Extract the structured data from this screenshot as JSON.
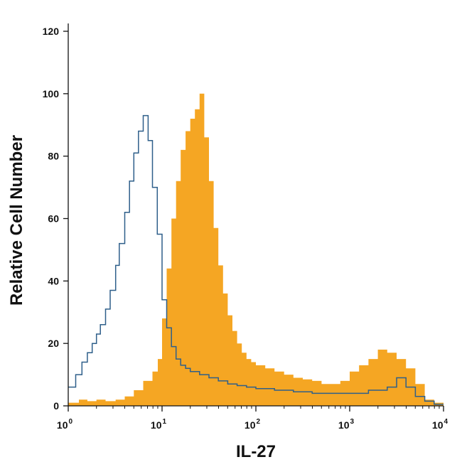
{
  "chart_data": {
    "type": "area",
    "title": "",
    "xlabel": "IL-27",
    "ylabel": "Relative Cell Number",
    "xscale": "log",
    "xlim": [
      1,
      10000
    ],
    "ylim": [
      0,
      120
    ],
    "yticks": [
      0,
      20,
      40,
      60,
      80,
      100,
      120
    ],
    "xticks": [
      {
        "base": "10",
        "exp": "0"
      },
      {
        "base": "10",
        "exp": "1"
      },
      {
        "base": "10",
        "exp": "2"
      },
      {
        "base": "10",
        "exp": "3"
      },
      {
        "base": "10",
        "exp": "4"
      }
    ],
    "grid": false,
    "legend": "none",
    "series": [
      {
        "style": "filled",
        "color": "#f5a623",
        "points": [
          [
            1.0,
            1
          ],
          [
            1.3,
            2
          ],
          [
            1.6,
            1.5
          ],
          [
            2.0,
            2
          ],
          [
            2.5,
            1.5
          ],
          [
            3.2,
            2
          ],
          [
            4.0,
            3
          ],
          [
            5.0,
            5
          ],
          [
            6.3,
            8
          ],
          [
            7.9,
            11
          ],
          [
            9.0,
            15
          ],
          [
            10.0,
            28
          ],
          [
            11.2,
            44
          ],
          [
            12.6,
            60
          ],
          [
            14.1,
            72
          ],
          [
            15.8,
            82
          ],
          [
            17.8,
            88
          ],
          [
            20.0,
            92
          ],
          [
            22.4,
            95
          ],
          [
            25.1,
            100
          ],
          [
            28.2,
            86
          ],
          [
            31.6,
            72
          ],
          [
            35.5,
            57
          ],
          [
            39.8,
            45
          ],
          [
            44.7,
            36
          ],
          [
            50.1,
            29
          ],
          [
            56.2,
            24
          ],
          [
            63.1,
            20
          ],
          [
            70.8,
            17
          ],
          [
            79.4,
            15
          ],
          [
            89.1,
            14
          ],
          [
            100,
            13
          ],
          [
            126,
            12
          ],
          [
            158,
            11
          ],
          [
            200,
            10
          ],
          [
            251,
            9
          ],
          [
            316,
            8.5
          ],
          [
            398,
            8
          ],
          [
            501,
            7
          ],
          [
            631,
            7
          ],
          [
            794,
            8
          ],
          [
            1000,
            11
          ],
          [
            1259,
            13
          ],
          [
            1585,
            15
          ],
          [
            1995,
            18
          ],
          [
            2512,
            17
          ],
          [
            3162,
            15
          ],
          [
            3981,
            12
          ],
          [
            5012,
            7
          ],
          [
            6310,
            2
          ],
          [
            7943,
            1
          ],
          [
            10000,
            1
          ]
        ]
      },
      {
        "style": "outline",
        "color": "#2e5f8a",
        "points": [
          [
            1.0,
            6
          ],
          [
            1.2,
            10
          ],
          [
            1.4,
            14
          ],
          [
            1.6,
            17
          ],
          [
            1.8,
            20
          ],
          [
            2.0,
            23
          ],
          [
            2.2,
            26
          ],
          [
            2.5,
            31
          ],
          [
            2.8,
            37
          ],
          [
            3.2,
            45
          ],
          [
            3.5,
            52
          ],
          [
            4.0,
            62
          ],
          [
            4.5,
            72
          ],
          [
            5.0,
            81
          ],
          [
            5.6,
            88
          ],
          [
            6.3,
            93
          ],
          [
            7.1,
            85
          ],
          [
            7.9,
            70
          ],
          [
            8.9,
            55
          ],
          [
            10.0,
            34
          ],
          [
            11.2,
            25
          ],
          [
            12.6,
            19
          ],
          [
            14.1,
            15
          ],
          [
            15.8,
            13
          ],
          [
            17.8,
            12
          ],
          [
            20.0,
            11
          ],
          [
            25.1,
            10
          ],
          [
            31.6,
            9
          ],
          [
            39.8,
            8
          ],
          [
            50.1,
            7
          ],
          [
            63.1,
            6.5
          ],
          [
            79.4,
            6
          ],
          [
            100,
            5.5
          ],
          [
            158,
            5
          ],
          [
            251,
            4.5
          ],
          [
            398,
            4
          ],
          [
            631,
            4
          ],
          [
            1000,
            4
          ],
          [
            1585,
            5
          ],
          [
            2512,
            6
          ],
          [
            3162,
            9
          ],
          [
            3981,
            6
          ],
          [
            5012,
            3
          ],
          [
            6310,
            1.5
          ],
          [
            7943,
            0.5
          ],
          [
            10000,
            0.5
          ]
        ]
      }
    ]
  }
}
